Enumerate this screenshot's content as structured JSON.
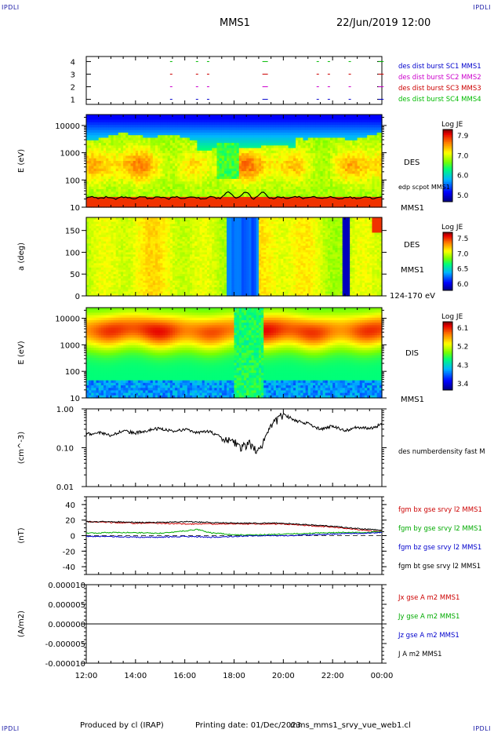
{
  "header": {
    "corner_tl": "IPDLI",
    "corner_tr": "IPDLI",
    "corner_bl": "IPDLI",
    "corner_br": "IPDLI",
    "mission": "MMS1",
    "datetime": "22/Jun/2019 12:00"
  },
  "footer": {
    "produced_by": "Produced by cl (IRAP)",
    "printing_date": "Printing date: 01/Dec/2023",
    "filename": "mms_mms1_srvy_vue_web1.cl"
  },
  "colors": {
    "sc1": "#0000cc",
    "sc2": "#cc00cc",
    "sc3": "#cc0000",
    "sc4": "#00bb00",
    "bx": "#cc0000",
    "by": "#00aa00",
    "bz": "#0000cc",
    "bt": "#000000"
  },
  "chart_data": [
    {
      "type": "scatter",
      "name": "burst-availability",
      "ylim": [
        0.6,
        4.4
      ],
      "yticks": [
        "1",
        "2",
        "3",
        "4"
      ],
      "x_unit": "hours since 12:00",
      "burst_segments_hours": [
        3.4,
        4.45,
        4.9,
        7.15,
        9.35,
        9.8,
        10.65,
        11.85
      ],
      "legend": [
        "des dist burst SC1 MMS1",
        "des dist burst SC2 MMS2",
        "des dist burst SC3 MMS3",
        "des dist burst SC4 MMS4"
      ]
    },
    {
      "type": "heatmap",
      "name": "des-energy-spectrogram",
      "ylabel": "E (eV)",
      "yscale": "log",
      "yticks": [
        "10",
        "100",
        "1000",
        "10000"
      ],
      "colorbar_title": "Log JE",
      "colorbar_ticks": [
        "7.9",
        "7.0",
        "6.0",
        "5.0"
      ],
      "side_label": "DES",
      "overlay_label": "edp scpot MMS1",
      "spacecraft_label": "MMS1"
    },
    {
      "type": "heatmap",
      "name": "des-pitch-angle",
      "ylabel": "a (deg)",
      "yticks": [
        "0",
        "50",
        "100",
        "150"
      ],
      "ylim": [
        0,
        180
      ],
      "colorbar_title": "Log JE",
      "colorbar_ticks": [
        "7.5",
        "7.0",
        "6.5",
        "6.0"
      ],
      "side_label": "DES",
      "spacecraft_label": "MMS1",
      "energy_range_label": "124-170 eV"
    },
    {
      "type": "heatmap",
      "name": "dis-energy-spectrogram",
      "ylabel": "E (eV)",
      "yscale": "log",
      "yticks": [
        "10",
        "100",
        "1000",
        "10000"
      ],
      "colorbar_title": "Log JE",
      "colorbar_ticks": [
        "6.1",
        "5.2",
        "4.3",
        "3.4"
      ],
      "side_label": "DIS",
      "spacecraft_label": "MMS1"
    },
    {
      "type": "line",
      "name": "electron-density",
      "ylabel": "(cm^-3)",
      "yscale": "log",
      "yticks": [
        "0.01",
        "0.10",
        "1.00"
      ],
      "ylim": [
        0.01,
        1.0
      ],
      "series": [
        {
          "name": "des numberdensity fast M",
          "x": [
            0,
            0.5,
            1,
            1.5,
            2,
            2.5,
            3,
            3.5,
            4,
            4.5,
            5,
            5.5,
            6,
            6.3,
            6.6,
            7,
            7.3,
            7.6,
            8,
            8.5,
            9,
            9.5,
            10,
            10.5,
            11,
            11.5,
            12
          ],
          "values": [
            0.22,
            0.25,
            0.21,
            0.27,
            0.24,
            0.28,
            0.32,
            0.26,
            0.3,
            0.24,
            0.27,
            0.18,
            0.14,
            0.1,
            0.13,
            0.08,
            0.2,
            0.45,
            0.72,
            0.5,
            0.42,
            0.3,
            0.36,
            0.27,
            0.34,
            0.31,
            0.4
          ]
        }
      ]
    },
    {
      "type": "line",
      "name": "magnetic-field",
      "ylabel": "(nT)",
      "yticks": [
        "-40",
        "-20",
        "0",
        "20",
        "40"
      ],
      "ylim": [
        -50,
        50
      ],
      "series": [
        {
          "name": "fgm bx gse srvy l2 MMS1",
          "x": [
            0,
            1,
            2,
            3,
            4,
            5,
            6,
            7,
            8,
            9,
            10,
            11,
            11.5,
            12
          ],
          "values": [
            18,
            17,
            16,
            16,
            15,
            15,
            15,
            15,
            15,
            13,
            11,
            8,
            6,
            5
          ]
        },
        {
          "name": "fgm by gse srvy l2 MMS1",
          "x": [
            0,
            1,
            2,
            3,
            4,
            4.5,
            5,
            6,
            7,
            8,
            9,
            10,
            11,
            12
          ],
          "values": [
            3,
            4,
            4,
            3,
            6,
            8,
            4,
            1,
            1,
            2,
            3,
            4,
            4,
            5
          ]
        },
        {
          "name": "fgm bz gse srvy l2 MMS1",
          "x": [
            0,
            1,
            2,
            3,
            4,
            5,
            6,
            7,
            8,
            9,
            10,
            11,
            12
          ],
          "values": [
            -1,
            -1,
            -2,
            -2,
            -1,
            -2,
            -1,
            0,
            0,
            1,
            2,
            3,
            4
          ]
        },
        {
          "name": "fgm bt gse srvy l2 MMS1",
          "x": [
            0,
            1,
            2,
            3,
            4,
            5,
            6,
            7,
            8,
            9,
            10,
            11,
            11.5,
            12
          ],
          "values": [
            18,
            18,
            17,
            17,
            18,
            17,
            16,
            16,
            16,
            14,
            12,
            9,
            8,
            7
          ]
        }
      ]
    },
    {
      "type": "line",
      "name": "current-density",
      "ylabel": "(A/m2)",
      "yticks": [
        "-0.000010",
        "-0.000005",
        "0.000000",
        "0.000005",
        "0.000010"
      ],
      "ylim": [
        -1e-05,
        1e-05
      ],
      "series": [
        {
          "name": "Jx gse A m2 MMS1",
          "x": [
            0,
            12
          ],
          "values": [
            0,
            0
          ]
        },
        {
          "name": "Jy gse A m2 MMS1",
          "x": [
            0,
            12
          ],
          "values": [
            0,
            0
          ]
        },
        {
          "name": "Jz gse A m2 MMS1",
          "x": [
            0,
            12
          ],
          "values": [
            0,
            0
          ]
        },
        {
          "name": "J A m2 MMS1",
          "x": [
            0,
            12
          ],
          "values": [
            0,
            0
          ]
        }
      ]
    }
  ],
  "time_axis": {
    "ticks": [
      "12:00",
      "14:00",
      "16:00",
      "18:00",
      "20:00",
      "22:00",
      "00:00"
    ],
    "range_hours": [
      0,
      12
    ]
  }
}
